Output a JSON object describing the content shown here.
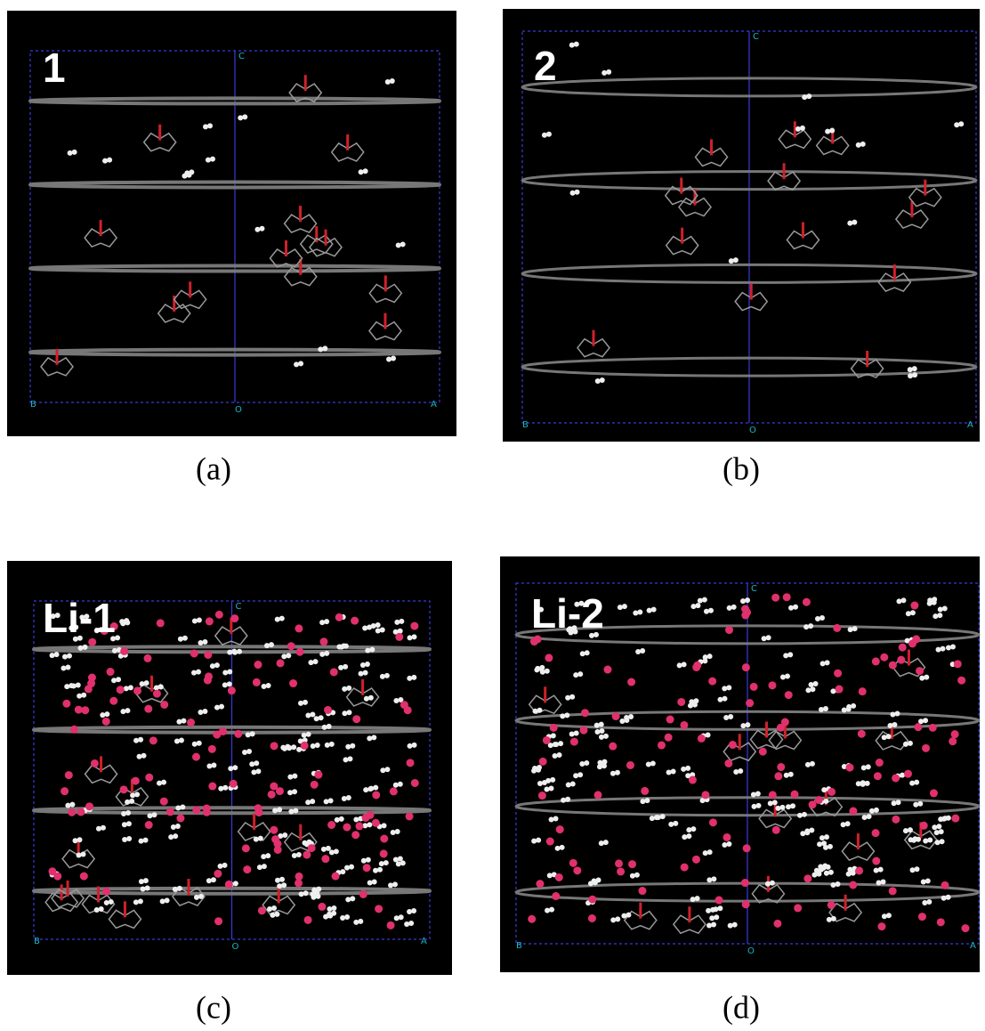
{
  "panels": [
    {
      "label": "1",
      "caption": "(a)",
      "cell_labels": {
        "c": "C",
        "b": "B",
        "o": "O",
        "a": "A"
      }
    },
    {
      "label": "2",
      "caption": "(b)",
      "cell_labels": {
        "c": "C",
        "b": "B",
        "o": "O",
        "a": "A"
      }
    },
    {
      "label": "Li-1",
      "caption": "(c)",
      "cell_labels": {
        "c": "C",
        "b": "B",
        "o": "O",
        "a": "A"
      }
    },
    {
      "label": "Li-2",
      "caption": "(d)",
      "cell_labels": {
        "c": "C",
        "b": "B",
        "o": "O",
        "a": "A"
      }
    }
  ]
}
